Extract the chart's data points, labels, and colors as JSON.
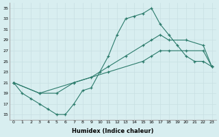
{
  "xlabel": "Humidex (Indice chaleur)",
  "ylabel": "",
  "bg_color": "#d8eef0",
  "grid_color": "#c8dfe3",
  "line_color": "#2a7a6a",
  "xlim": [
    -0.5,
    23.5
  ],
  "ylim": [
    14,
    36
  ],
  "xticks": [
    0,
    1,
    2,
    3,
    4,
    5,
    6,
    7,
    8,
    9,
    10,
    11,
    12,
    13,
    14,
    15,
    16,
    17,
    18,
    19,
    20,
    21,
    22,
    23
  ],
  "yticks": [
    15,
    17,
    19,
    21,
    23,
    25,
    27,
    29,
    31,
    33,
    35
  ],
  "line1_x": [
    0,
    1,
    2,
    3,
    4,
    5,
    6,
    7,
    8,
    9,
    10,
    11,
    12,
    13,
    14,
    15,
    16,
    17,
    18,
    19,
    20,
    21,
    22,
    23
  ],
  "line1_y": [
    21,
    19,
    18,
    17,
    16,
    15,
    15,
    17,
    19.5,
    20,
    23,
    26,
    30,
    33,
    33.5,
    34,
    35,
    32,
    30,
    28,
    26,
    25,
    25,
    24
  ],
  "line2_x": [
    0,
    3,
    5,
    7,
    9,
    11,
    13,
    15,
    16,
    17,
    18,
    20,
    22,
    23
  ],
  "line2_y": [
    21,
    19,
    19,
    21,
    22,
    24,
    26,
    28,
    29,
    30,
    29,
    29,
    28,
    24
  ],
  "line3_x": [
    0,
    3,
    7,
    11,
    15,
    16,
    17,
    18,
    20,
    22,
    23
  ],
  "line3_y": [
    21,
    19,
    21,
    23,
    25,
    26,
    27,
    27,
    27,
    27,
    24
  ]
}
